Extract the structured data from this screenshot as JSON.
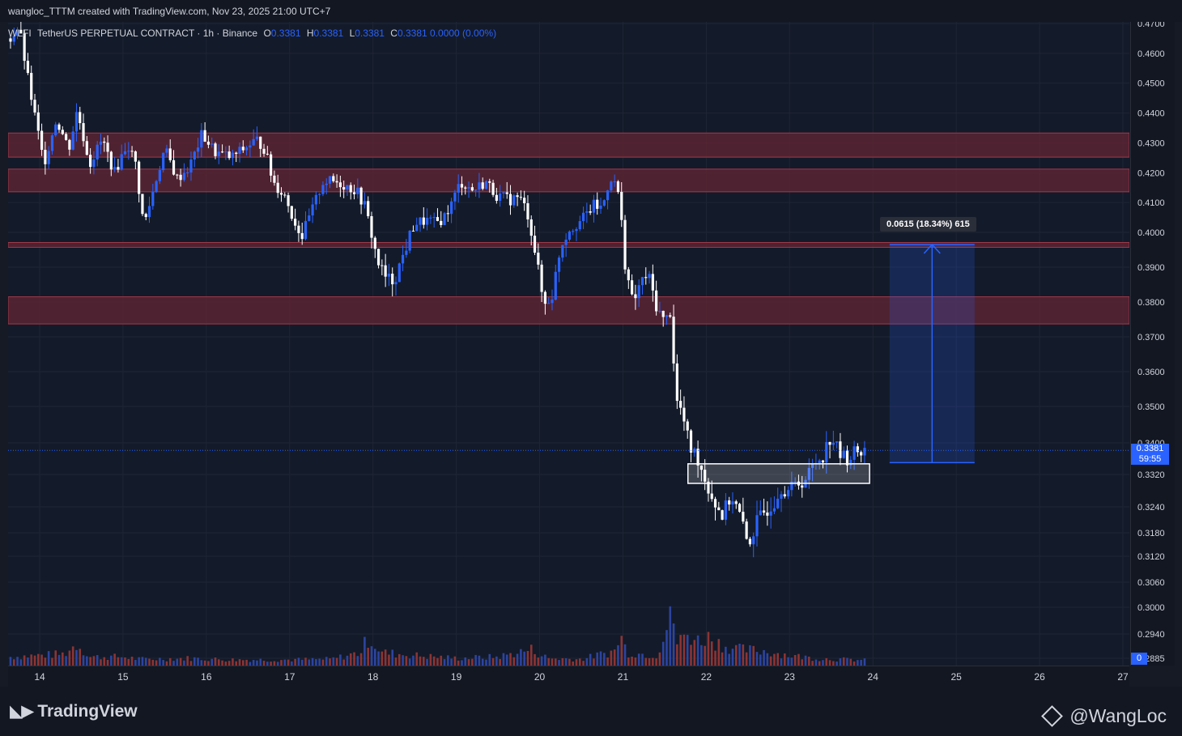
{
  "header": {
    "credit": "wangloc_TTTM created with TradingView.com, Nov 23, 2025 21:00 UTC+7"
  },
  "legend": {
    "symbol": "WLFI",
    "description": "TetherUS PERPETUAL CONTRACT · 1h · Binance",
    "open_label": "O",
    "open": "0.3381",
    "high_label": "H",
    "high": "0.3381",
    "low_label": "L",
    "low": "0.3381",
    "close_label": "C",
    "close": "0.3381",
    "change": "0.0000 (0.00%)"
  },
  "price_tag": {
    "price": "0.3381",
    "countdown": "59:55"
  },
  "volume_tag": "0",
  "measure": {
    "label": "0.0615 (18.34%) 615"
  },
  "footer": {
    "brand": "TradingView",
    "author": "@WangLoc"
  },
  "colors": {
    "background": "#131a29",
    "up": "#2962ff",
    "down": "#ffffff",
    "vol_up": "#2c44a0",
    "vol_down": "#8c3434",
    "zone": "#5a2433",
    "zone_border": "#a13a4a",
    "accent": "#2962ff"
  },
  "chart_data": {
    "type": "candlestick",
    "interval": "1h",
    "current_price": 0.3381,
    "price_ticks": [
      "0.4700",
      "0.4600",
      "0.4500",
      "0.4400",
      "0.4300",
      "0.4200",
      "0.4100",
      "0.4000",
      "0.3900",
      "0.3800",
      "0.3700",
      "0.3600",
      "0.3500",
      "0.3400",
      "0.3320",
      "0.3240",
      "0.3180",
      "0.3120",
      "0.3060",
      "0.3000",
      "0.2940",
      "0.2885"
    ],
    "date_ticks": [
      "14",
      "15",
      "16",
      "17",
      "18",
      "19",
      "20",
      "21",
      "22",
      "23",
      "24",
      "25",
      "26",
      "27"
    ],
    "x_range": [
      13.65,
      27.05
    ],
    "resistance_zones": [
      {
        "from": 0.4252,
        "to": 0.4333
      },
      {
        "from": 0.4136,
        "to": 0.4212
      },
      {
        "from": 0.3959,
        "to": 0.3971
      },
      {
        "from": 0.3737,
        "to": 0.3815
      }
    ],
    "support_box": {
      "from": 0.3298,
      "to": 0.3347,
      "start": 21.78,
      "end": 23.96
    },
    "measure_range": {
      "from": 0.335,
      "to": 0.3965,
      "start": 24.2,
      "end": 25.22
    },
    "price_path": [
      [
        13.65,
        0.465
      ],
      [
        13.75,
        0.469
      ],
      [
        13.88,
        0.448
      ],
      [
        14.05,
        0.423
      ],
      [
        14.2,
        0.438
      ],
      [
        14.35,
        0.428
      ],
      [
        14.45,
        0.441
      ],
      [
        14.6,
        0.423
      ],
      [
        14.75,
        0.431
      ],
      [
        14.9,
        0.42
      ],
      [
        15.05,
        0.43
      ],
      [
        15.15,
        0.423
      ],
      [
        15.25,
        0.402
      ],
      [
        15.4,
        0.418
      ],
      [
        15.5,
        0.428
      ],
      [
        15.65,
        0.418
      ],
      [
        15.8,
        0.422
      ],
      [
        15.95,
        0.433
      ],
      [
        16.1,
        0.427
      ],
      [
        16.3,
        0.425
      ],
      [
        16.45,
        0.428
      ],
      [
        16.6,
        0.431
      ],
      [
        16.7,
        0.428
      ],
      [
        16.8,
        0.417
      ],
      [
        16.95,
        0.412
      ],
      [
        17.05,
        0.404
      ],
      [
        17.15,
        0.399
      ],
      [
        17.25,
        0.406
      ],
      [
        17.4,
        0.417
      ],
      [
        17.55,
        0.417
      ],
      [
        17.65,
        0.416
      ],
      [
        17.8,
        0.414
      ],
      [
        17.9,
        0.409
      ],
      [
        18.05,
        0.392
      ],
      [
        18.15,
        0.387
      ],
      [
        18.25,
        0.386
      ],
      [
        18.4,
        0.396
      ],
      [
        18.5,
        0.403
      ],
      [
        18.65,
        0.404
      ],
      [
        18.75,
        0.403
      ],
      [
        18.85,
        0.405
      ],
      [
        18.95,
        0.41
      ],
      [
        19.05,
        0.417
      ],
      [
        19.2,
        0.414
      ],
      [
        19.35,
        0.417
      ],
      [
        19.5,
        0.412
      ],
      [
        19.65,
        0.411
      ],
      [
        19.75,
        0.412
      ],
      [
        19.85,
        0.407
      ],
      [
        19.95,
        0.394
      ],
      [
        20.05,
        0.379
      ],
      [
        20.15,
        0.382
      ],
      [
        20.25,
        0.396
      ],
      [
        20.35,
        0.401
      ],
      [
        20.5,
        0.404
      ],
      [
        20.65,
        0.409
      ],
      [
        20.75,
        0.408
      ],
      [
        20.85,
        0.419
      ],
      [
        20.95,
        0.413
      ],
      [
        21.02,
        0.392
      ],
      [
        21.12,
        0.379
      ],
      [
        21.2,
        0.385
      ],
      [
        21.3,
        0.388
      ],
      [
        21.4,
        0.379
      ],
      [
        21.5,
        0.374
      ],
      [
        21.58,
        0.378
      ],
      [
        21.63,
        0.352
      ],
      [
        21.7,
        0.349
      ],
      [
        21.8,
        0.339
      ],
      [
        21.9,
        0.336
      ],
      [
        22.0,
        0.33
      ],
      [
        22.1,
        0.325
      ],
      [
        22.2,
        0.322
      ],
      [
        22.3,
        0.327
      ],
      [
        22.4,
        0.322
      ],
      [
        22.5,
        0.315
      ],
      [
        22.6,
        0.32
      ],
      [
        22.7,
        0.323
      ],
      [
        22.8,
        0.325
      ],
      [
        22.9,
        0.329
      ],
      [
        23.0,
        0.328
      ],
      [
        23.1,
        0.33
      ],
      [
        23.2,
        0.331
      ],
      [
        23.3,
        0.335
      ],
      [
        23.4,
        0.337
      ],
      [
        23.5,
        0.342
      ],
      [
        23.6,
        0.337
      ],
      [
        23.7,
        0.336
      ],
      [
        23.8,
        0.338
      ],
      [
        23.9,
        0.3381
      ]
    ],
    "volume_path": [
      [
        13.65,
        0.3
      ],
      [
        14.3,
        0.4
      ],
      [
        14.45,
        0.75
      ],
      [
        14.6,
        0.3
      ],
      [
        15.0,
        0.3
      ],
      [
        15.2,
        0.22
      ],
      [
        15.8,
        0.25
      ],
      [
        16.3,
        0.2
      ],
      [
        17.0,
        0.2
      ],
      [
        17.5,
        0.22
      ],
      [
        17.85,
        0.45
      ],
      [
        17.95,
        1.0
      ],
      [
        18.1,
        0.45
      ],
      [
        18.5,
        0.35
      ],
      [
        19.0,
        0.25
      ],
      [
        19.5,
        0.3
      ],
      [
        19.9,
        0.55
      ],
      [
        20.1,
        0.25
      ],
      [
        20.5,
        0.22
      ],
      [
        20.9,
        0.5
      ],
      [
        20.97,
        1.05
      ],
      [
        21.05,
        0.45
      ],
      [
        21.4,
        0.35
      ],
      [
        21.6,
        1.8
      ],
      [
        21.65,
        0.75
      ],
      [
        21.78,
        1.1
      ],
      [
        21.9,
        0.85
      ],
      [
        22.0,
        1.0
      ],
      [
        22.2,
        0.7
      ],
      [
        22.4,
        0.55
      ],
      [
        22.7,
        0.5
      ],
      [
        23.0,
        0.35
      ],
      [
        23.3,
        0.25
      ],
      [
        23.9,
        0.18
      ]
    ]
  }
}
